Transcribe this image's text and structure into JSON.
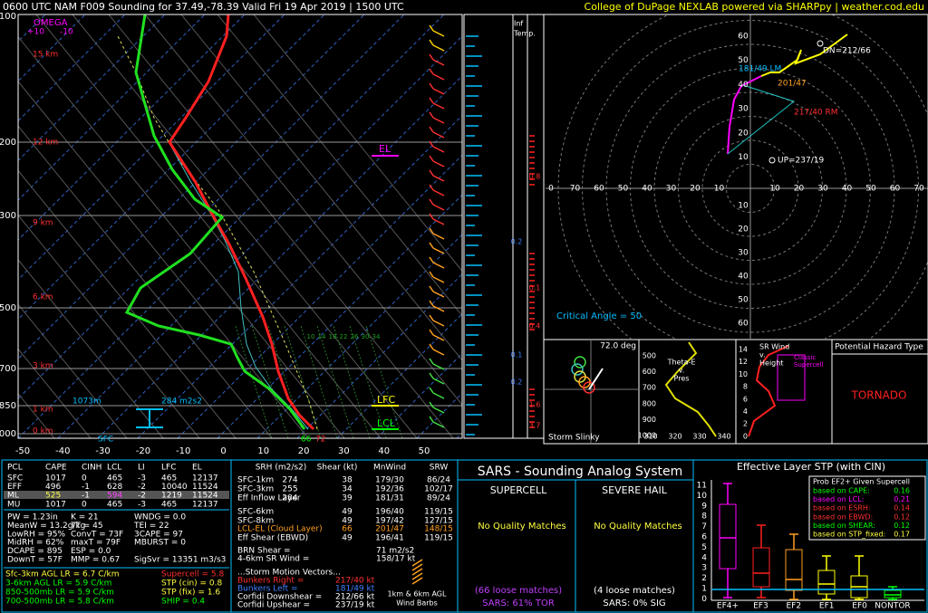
{
  "header": {
    "title": "0600 UTC NAM F009 Sounding for 37.49,-78.39 Valid  Fri 19 Apr 2019 | 1500 UTC",
    "credit": "College of DuPage NEXLAB powered via SHARPpy | weather.cod.edu"
  },
  "skewt": {
    "omega": "OMEGA",
    "omega_ticks": [
      "+10",
      "-10"
    ],
    "pressure_labels": [
      "100",
      "200",
      "300",
      "500",
      "700",
      "850",
      "1000"
    ],
    "temp_labels": [
      "-50",
      "-40",
      "-30",
      "-20",
      "-10",
      "0",
      "10",
      "20",
      "30",
      "40",
      "50"
    ],
    "height_labels": [
      "15 km",
      "12 km",
      "9 km",
      "6 km",
      "3 km",
      "1 km",
      "0 km"
    ],
    "mixing_ratio_labels": [
      "10",
      "14",
      "18",
      "22",
      "26",
      "30",
      "34"
    ],
    "el": "EL",
    "lfc": "LFC",
    "lcl": "LCL",
    "sfc": "SFC",
    "depth": "1073m",
    "srh": "284 m2s2",
    "sfc_td": "66",
    "sfc_t": "72"
  },
  "inferred_temp": {
    "title": [
      "Inf",
      "Temp."
    ],
    "values": [
      "0.8",
      "0.2",
      "0.1",
      "0.4",
      "0.1",
      "0.2",
      "1.6",
      "3.7"
    ]
  },
  "hodograph": {
    "up_rings": [
      "60",
      "50",
      "40",
      "30",
      "20",
      "10"
    ],
    "down_rings": [
      "10",
      "20",
      "30",
      "40",
      "50",
      "60"
    ],
    "left_rings": [
      "0",
      "70",
      "60",
      "50",
      "40",
      "30",
      "20",
      "10"
    ],
    "right_rings": [
      "10",
      "20",
      "30",
      "40",
      "50",
      "60",
      "70"
    ],
    "dn": "DN=212/66",
    "lm": "181/49 LM",
    "mean": "201/47",
    "rm": "217/40 RM",
    "up": "UP=237/19",
    "critical_angle": "Critical Angle = 50"
  },
  "slinky": {
    "angle": "72.0 deg",
    "title": "Storm Slinky"
  },
  "theta_e": {
    "title": [
      "Theta-E",
      "v.",
      "Pres"
    ],
    "y_labels": [
      "500",
      "600",
      "700",
      "800",
      "900",
      "1000"
    ],
    "x_labels": [
      "310",
      "320",
      "330",
      "340"
    ]
  },
  "sr_wind": {
    "title": [
      "SR Wind",
      "v.",
      "Height"
    ],
    "class": [
      "Classic",
      "Supercell"
    ],
    "y_labels": [
      "14",
      "12",
      "10",
      "8",
      "6",
      "4",
      "2",
      "0"
    ]
  },
  "hazard": {
    "title": "Potential Hazard Type",
    "type": "TORNADO"
  },
  "thermo": {
    "header": [
      "PCL",
      "CAPE",
      "CINH",
      "LCL",
      "LI",
      "LFC",
      "EL"
    ],
    "rows": [
      [
        "SFC",
        "1017",
        "0",
        "465",
        "-3",
        "465",
        "12137"
      ],
      [
        "EFF",
        "496",
        "-1",
        "628",
        "-2",
        "10040",
        "11524"
      ],
      [
        "ML",
        "525",
        "-1",
        "594",
        "-2",
        "1219",
        "11524"
      ],
      [
        "MU",
        "1017",
        "0",
        "465",
        "-3",
        "465",
        "12137"
      ]
    ],
    "indices": [
      [
        "PW = 1.23in",
        "K = 21",
        "WNDG = 0.0"
      ],
      [
        "MeanW = 13.2g/kg",
        "TT = 45",
        "TEI = 22"
      ],
      [
        "LowRH = 95%",
        "ConvT = 73F",
        "3CAPE = 97"
      ],
      [
        "MidRH = 62%",
        "maxT = 79F",
        "MBURST = 0"
      ],
      [
        "DCAPE = 895",
        "ESP = 0.0"
      ],
      [
        "DownT = 57F",
        "MMP = 0.67",
        "SigSvr = 13351 m3/s3"
      ]
    ],
    "lapse_rates": [
      "Sfc-3km AGL LR = 6.7 C/km",
      "3-6km AGL LR = 5.9 C/km",
      "850-500mb LR = 5.9 C/km",
      "700-500mb LR = 5.8 C/km"
    ],
    "composites": [
      "Supercell = 5.8",
      "STP (cin) = 0.8",
      "STP (fix) = 1.6",
      "SHIP = 0.4"
    ]
  },
  "kinematics": {
    "header": [
      "SRH (m2/s2)",
      "Shear (kt)",
      "MnWind",
      "SRW"
    ],
    "rows": [
      [
        "SFC-1km",
        "274",
        "38",
        "179/30",
        "86/24"
      ],
      [
        "SFC-3km",
        "255",
        "34",
        "192/36",
        "102/17"
      ],
      [
        "Eff Inflow Layer",
        "284",
        "39",
        "181/31",
        "89/24"
      ],
      [
        "SFC-6km",
        "49",
        "196/40",
        "119/15"
      ],
      [
        "SFC-8km",
        "49",
        "197/42",
        "127/15"
      ],
      [
        "LCL-EL (Cloud Layer)",
        "66",
        "201/47",
        "148/15"
      ],
      [
        "Eff Shear (EBWD)",
        "49",
        "196/41",
        "119/15"
      ]
    ],
    "brn": [
      "BRN Shear = ",
      "71 m2/s2"
    ],
    "sr46": [
      "4-6km SR Wind = ",
      "158/17 kt"
    ],
    "motion_title": "...Storm Motion Vectors...",
    "motion": [
      [
        "Bunkers Right = ",
        "217/40 kt"
      ],
      [
        "Bunkers Left = ",
        "181/49 kt"
      ],
      [
        "Corfidi Downshear = ",
        "212/66 kt"
      ],
      [
        "Corfidi Upshear = ",
        "237/19 kt"
      ]
    ],
    "barbs_label": [
      "1km & 6km AGL",
      "Wind Barbs"
    ]
  },
  "sars": {
    "title": "SARS - Sounding Analog System",
    "supercell": "SUPERCELL",
    "hail": "SEVERE HAIL",
    "sc_match": "No Quality Matches",
    "hail_match": "No Quality Matches",
    "sc_loose": "(66 loose matches)",
    "sc_pct": "SARS: 61% TOR",
    "hail_loose": "(4 loose matches)",
    "hail_pct": "SARS: 0% SIG"
  },
  "stp": {
    "title": "Effective Layer STP (with CIN)",
    "y_labels": [
      "11",
      "10",
      "9",
      "8",
      "7",
      "6",
      "5",
      "4",
      "3",
      "2",
      "1",
      "0"
    ],
    "x_labels": [
      "EF4+",
      "EF3",
      "EF2",
      "EF1",
      "EF0",
      "NONTOR"
    ],
    "prob_title": "Prob EF2+ Given Supercell",
    "prob": [
      [
        "based on CAPE:",
        "0.16"
      ],
      [
        "based on LCL:",
        "0.21"
      ],
      [
        "based on ESRH:",
        "0.14"
      ],
      [
        "based on EBWD:",
        "0.12"
      ],
      [
        "based on SHEAR:",
        "0.12"
      ],
      [
        "based on STP_fixed:",
        "0.17"
      ]
    ]
  }
}
